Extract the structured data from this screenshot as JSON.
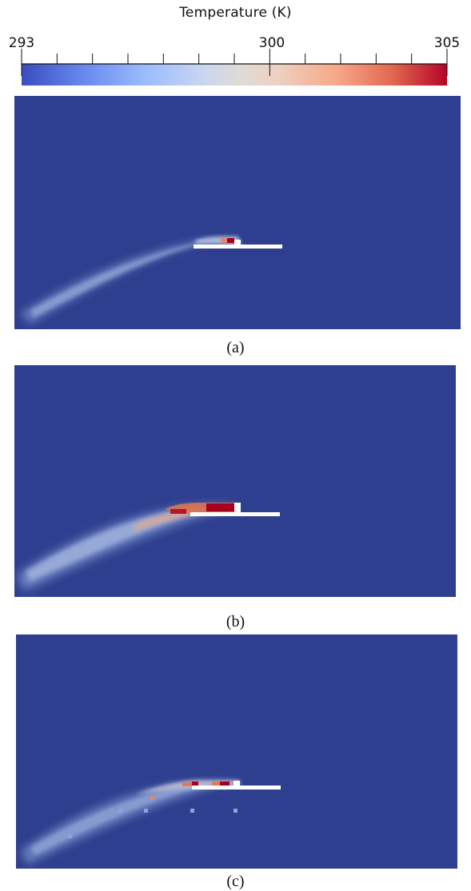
{
  "colorbar": {
    "title": "Temperature (K)",
    "min_label": "293",
    "mid_label": "300",
    "max_label": "305",
    "min": 293,
    "max": 305,
    "ticks_values": [
      293,
      294,
      295,
      296,
      297,
      298,
      299,
      300,
      301,
      302,
      303,
      304,
      305
    ],
    "colors": [
      "#3b4cc0",
      "#6788ee",
      "#9abbff",
      "#c9d7f0",
      "#edd1c2",
      "#f7a889",
      "#e26952",
      "#b40426"
    ]
  },
  "background_color": "#2f3f8f",
  "plate_color": "#ffffff",
  "panels": [
    {
      "id": "a",
      "caption": "(a)"
    },
    {
      "id": "b",
      "caption": "(b)"
    },
    {
      "id": "c",
      "caption": "(c)"
    }
  ]
}
